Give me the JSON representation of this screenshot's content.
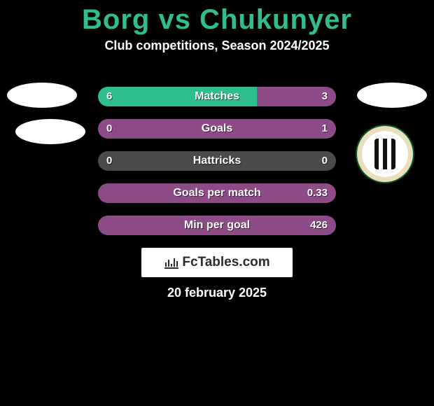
{
  "title": "Borg vs Chukunyer",
  "subtitle": "Club competitions, Season 2024/2025",
  "date": "20 february 2025",
  "brand": "FcTables.com",
  "colors": {
    "left": "#2fbf8f",
    "right": "#8d4b87",
    "neutral": "#4a4a4a",
    "title": "#2fbf8f"
  },
  "rows": [
    {
      "label": "Matches",
      "left": "6",
      "right": "3",
      "lpct": 66.7
    },
    {
      "label": "Goals",
      "left": "0",
      "right": "1",
      "lpct": 0
    },
    {
      "label": "Hattricks",
      "left": "0",
      "right": "0",
      "lpct": 50,
      "neutral": true
    },
    {
      "label": "Goals per match",
      "left": "",
      "right": "0.33",
      "lpct": 0
    },
    {
      "label": "Min per goal",
      "left": "",
      "right": "426",
      "lpct": 0
    }
  ]
}
